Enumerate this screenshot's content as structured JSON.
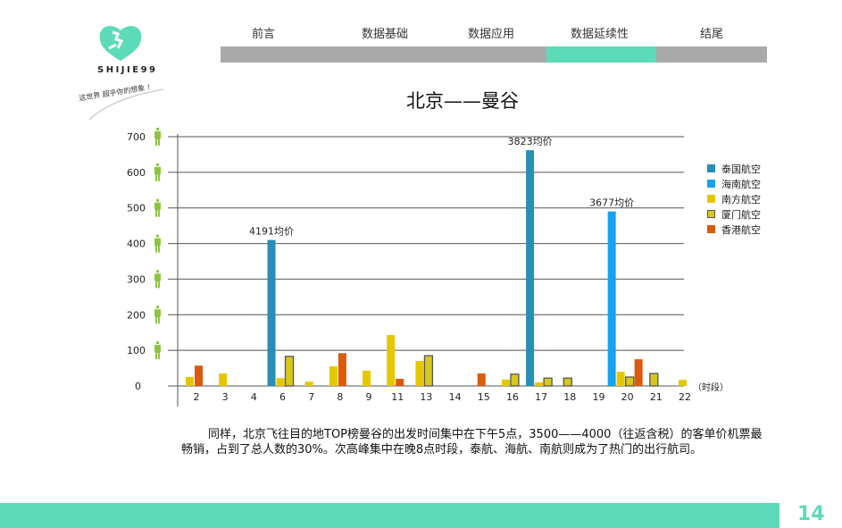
{
  "brand": {
    "name": "SHIJIE99",
    "slogan": "这世界 超乎你的想象 ！"
  },
  "nav": {
    "tabs": [
      {
        "label": "前言"
      },
      {
        "label": "数据基础"
      },
      {
        "label": "数据应用"
      },
      {
        "label": "数据延续性",
        "active": true
      },
      {
        "label": "结尾"
      }
    ],
    "accent": "#5ddbb8"
  },
  "chart_data": {
    "type": "bar",
    "title": "北京——曼谷",
    "xlabel": "（时段）",
    "ylabel": "",
    "ylim": [
      0,
      700
    ],
    "yticks": [
      0,
      100,
      200,
      300,
      400,
      500,
      600,
      700
    ],
    "categories": [
      "2",
      "3",
      "4",
      "6",
      "7",
      "8",
      "9",
      "11",
      "13",
      "14",
      "15",
      "16",
      "17",
      "18",
      "19",
      "20",
      "21",
      "22"
    ],
    "series": [
      {
        "name": "泰国航空",
        "color": "#2a8db5",
        "values": [
          null,
          null,
          null,
          410,
          null,
          null,
          null,
          null,
          null,
          null,
          null,
          null,
          662,
          null,
          null,
          null,
          null,
          null
        ]
      },
      {
        "name": "海南航空",
        "color": "#16a2ee",
        "values": [
          null,
          null,
          null,
          null,
          null,
          null,
          null,
          null,
          null,
          null,
          null,
          null,
          null,
          null,
          null,
          490,
          null,
          null
        ]
      },
      {
        "name": "南方航空",
        "color": "#e5c700",
        "values": [
          25,
          35,
          null,
          22,
          12,
          55,
          43,
          143,
          70,
          null,
          null,
          18,
          10,
          null,
          null,
          40,
          null,
          17
        ]
      },
      {
        "name": "厦门航空",
        "color": "#d8c81a",
        "outline": true,
        "values": [
          null,
          null,
          null,
          83,
          null,
          null,
          null,
          null,
          85,
          null,
          null,
          33,
          22,
          22,
          null,
          25,
          35,
          null
        ]
      },
      {
        "name": "香港航空",
        "color": "#dc5a0c",
        "values": [
          57,
          null,
          null,
          null,
          null,
          92,
          null,
          20,
          null,
          null,
          35,
          null,
          null,
          null,
          null,
          75,
          null,
          null
        ]
      }
    ],
    "annotations": [
      {
        "category": "6",
        "series": "泰国航空",
        "text": "4191均价"
      },
      {
        "category": "17",
        "series": "泰国航空",
        "text": "3823均价"
      },
      {
        "category": "20",
        "series": "海南航空",
        "text": "3677均价"
      }
    ],
    "legend": "right",
    "grid": true
  },
  "paragraph": "同样，北京飞往目的地TOP榜曼谷的出发时间集中在下午5点，3500——4000（往返含税）的客单价机票最畅销，占到了总人数的30%。次高峰集中在晚8点时段，泰航、海航、南航则成为了热门的出行航司。",
  "page_number": "14"
}
